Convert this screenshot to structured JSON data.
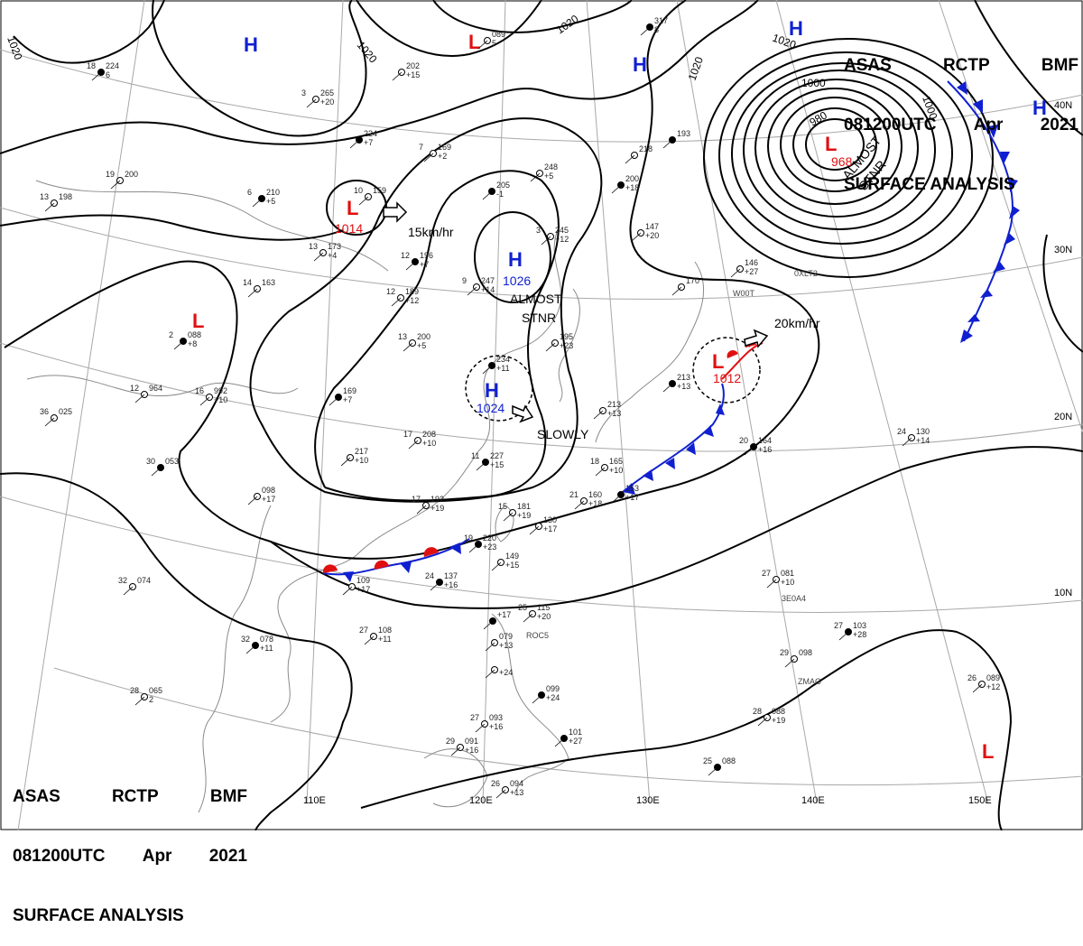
{
  "header": {
    "agency": "ASAS",
    "center": "RCTP",
    "office": "BMF",
    "time": "081200UTC",
    "month": "Apr",
    "year": "2021",
    "title": "SURFACE ANALYSIS"
  },
  "pressure_systems": [
    {
      "id": "h-1",
      "type": "H",
      "value": "",
      "color": "#1020d0"
    },
    {
      "id": "h-2",
      "type": "H",
      "value": "",
      "color": "#1020d0"
    },
    {
      "id": "h-3",
      "type": "H",
      "value": "",
      "color": "#1020d0"
    },
    {
      "id": "h-4",
      "type": "H",
      "value": "",
      "color": "#1020d0"
    },
    {
      "id": "h-1026",
      "type": "H",
      "value": "1026",
      "color": "#1020d0"
    },
    {
      "id": "h-1024",
      "type": "H",
      "value": "1024",
      "color": "#1020d0"
    },
    {
      "id": "l-1",
      "type": "L",
      "value": "",
      "color": "#e01010"
    },
    {
      "id": "l-1014",
      "type": "L",
      "value": "1014",
      "color": "#e01010"
    },
    {
      "id": "l-2",
      "type": "L",
      "value": "",
      "color": "#e01010"
    },
    {
      "id": "l-968",
      "type": "L",
      "value": "968",
      "color": "#e01010"
    },
    {
      "id": "l-1012",
      "type": "L",
      "value": "1012",
      "color": "#e01010"
    },
    {
      "id": "l-3",
      "type": "L",
      "value": "",
      "color": "#e01010"
    }
  ],
  "annotations": {
    "move_15": "15km/hr",
    "move_20": "20km/hr",
    "almost_stnr_a": "ALMOST",
    "almost_stnr_b": "STNR",
    "almost_stnr_c": "ALMOST",
    "almost_stnr_d": "STNR",
    "slowly": "SLOWLY"
  },
  "isobar_labels": [
    "1020",
    "1020",
    "1020",
    "1020",
    "1020",
    "1000",
    "1000",
    "980"
  ],
  "lat_labels": [
    "40N",
    "30N",
    "20N",
    "10N"
  ],
  "lon_labels": [
    "110E",
    "120E",
    "130E",
    "140E",
    "150E"
  ],
  "stations": [
    {
      "id": "st-01",
      "t": "18",
      "p": "224",
      "dp": "6"
    },
    {
      "id": "st-02",
      "t": "3",
      "p": "265",
      "dp": "+20"
    },
    {
      "id": "st-03",
      "t": "",
      "p": "202",
      "dp": "+15"
    },
    {
      "id": "st-04",
      "t": "",
      "p": "224",
      "dp": "+7"
    },
    {
      "id": "st-05",
      "t": "7",
      "p": "169",
      "dp": "+2"
    },
    {
      "id": "st-06",
      "t": "",
      "p": "089",
      "dp": "5"
    },
    {
      "id": "st-07",
      "t": "",
      "p": "317",
      "dp": "8"
    },
    {
      "id": "st-08",
      "t": "19",
      "p": "200",
      "dp": ""
    },
    {
      "id": "st-09",
      "t": "13",
      "p": "198",
      "dp": ""
    },
    {
      "id": "st-10",
      "t": "6",
      "p": "210",
      "dp": "+5"
    },
    {
      "id": "st-11",
      "t": "10",
      "p": "159",
      "dp": ""
    },
    {
      "id": "st-12",
      "t": "13",
      "p": "173",
      "dp": "+4"
    },
    {
      "id": "st-13",
      "t": "12",
      "p": "196",
      "dp": "+7"
    },
    {
      "id": "st-14",
      "t": "12",
      "p": "189",
      "dp": "+12"
    },
    {
      "id": "st-15",
      "t": "14",
      "p": "163",
      "dp": ""
    },
    {
      "id": "st-16",
      "t": "2",
      "p": "088",
      "dp": "+8"
    },
    {
      "id": "st-17",
      "t": "12",
      "p": "964",
      "dp": ""
    },
    {
      "id": "st-18",
      "t": "16",
      "p": "992",
      "dp": "+10"
    },
    {
      "id": "st-19",
      "t": "",
      "p": "169",
      "dp": "+7"
    },
    {
      "id": "st-20",
      "t": "13",
      "p": "200",
      "dp": "+5"
    },
    {
      "id": "st-21",
      "t": "36",
      "p": "025",
      "dp": ""
    },
    {
      "id": "st-22",
      "t": "30",
      "p": "053",
      "dp": ""
    },
    {
      "id": "st-23",
      "t": "",
      "p": "217",
      "dp": "+10"
    },
    {
      "id": "st-24",
      "t": "17",
      "p": "208",
      "dp": "+10"
    },
    {
      "id": "st-25",
      "t": "11",
      "p": "227",
      "dp": "+15"
    },
    {
      "id": "st-26",
      "t": "",
      "p": "098",
      "dp": "+17"
    },
    {
      "id": "st-27",
      "t": "17",
      "p": "192",
      "dp": "+19"
    },
    {
      "id": "st-28",
      "t": "",
      "p": "205",
      "dp": "-1"
    },
    {
      "id": "st-29",
      "t": "3",
      "p": "245",
      "dp": "+12"
    },
    {
      "id": "st-30",
      "t": "9",
      "p": "247",
      "dp": "+14"
    },
    {
      "id": "st-31",
      "t": "",
      "p": "234",
      "dp": "+11"
    },
    {
      "id": "st-32",
      "t": "",
      "p": "195",
      "dp": "+23"
    },
    {
      "id": "st-33",
      "t": "",
      "p": "248",
      "dp": "+5"
    },
    {
      "id": "st-34",
      "t": "",
      "p": "200",
      "dp": "+18"
    },
    {
      "id": "st-35",
      "t": "",
      "p": "218",
      "dp": ""
    },
    {
      "id": "st-36",
      "t": "",
      "p": "147",
      "dp": "+20"
    },
    {
      "id": "st-37",
      "t": "",
      "p": "193",
      "dp": ""
    },
    {
      "id": "st-38",
      "t": "",
      "p": "146",
      "dp": "+27"
    },
    {
      "id": "st-39",
      "t": "",
      "p": "170",
      "dp": ""
    },
    {
      "id": "st-40",
      "t": "",
      "p": "213",
      "dp": "+13"
    },
    {
      "id": "st-41",
      "t": "",
      "p": "213",
      "dp": "+13"
    },
    {
      "id": "st-42",
      "t": "18",
      "p": "165",
      "dp": "+10"
    },
    {
      "id": "st-43",
      "t": "20",
      "p": "164",
      "dp": "+16"
    },
    {
      "id": "st-44",
      "t": "24",
      "p": "130",
      "dp": "+14"
    },
    {
      "id": "st-45",
      "t": "21",
      "p": "160",
      "dp": "+18"
    },
    {
      "id": "st-46",
      "t": "",
      "p": "153",
      "dp": "+17"
    },
    {
      "id": "st-47",
      "t": "15",
      "p": "181",
      "dp": "+19"
    },
    {
      "id": "st-48",
      "t": "",
      "p": "130",
      "dp": "+17"
    },
    {
      "id": "st-49",
      "t": "19",
      "p": "220",
      "dp": "+23"
    },
    {
      "id": "st-50",
      "t": "",
      "p": "149",
      "dp": "+15"
    },
    {
      "id": "st-51",
      "t": "",
      "p": "109",
      "dp": "+17"
    },
    {
      "id": "st-52",
      "t": "24",
      "p": "137",
      "dp": "+16"
    },
    {
      "id": "st-53",
      "t": "32",
      "p": "074",
      "dp": ""
    },
    {
      "id": "st-54",
      "t": "27",
      "p": "108",
      "dp": "+11"
    },
    {
      "id": "st-55",
      "t": "32",
      "p": "078",
      "dp": "+11"
    },
    {
      "id": "st-56",
      "t": "28",
      "p": "065",
      "dp": "2"
    },
    {
      "id": "st-57",
      "t": "25",
      "p": "115",
      "dp": "+20"
    },
    {
      "id": "st-58",
      "t": "",
      "p": "+17",
      "dp": ""
    },
    {
      "id": "st-59",
      "t": "",
      "p": "079",
      "dp": "+13"
    },
    {
      "id": "st-60",
      "t": "",
      "p": "",
      "dp": "+24"
    },
    {
      "id": "st-61",
      "t": "",
      "p": "099",
      "dp": "+24"
    },
    {
      "id": "st-62",
      "t": "27",
      "p": "093",
      "dp": "+16"
    },
    {
      "id": "st-63",
      "t": "29",
      "p": "091",
      "dp": "+16"
    },
    {
      "id": "st-64",
      "t": "",
      "p": "101",
      "dp": "+27"
    },
    {
      "id": "st-65",
      "t": "26",
      "p": "094",
      "dp": "+13"
    },
    {
      "id": "st-66",
      "t": "27",
      "p": "081",
      "dp": "+10"
    },
    {
      "id": "st-67",
      "t": "27",
      "p": "103",
      "dp": "+28"
    },
    {
      "id": "st-68",
      "t": "29",
      "p": "098",
      "dp": ""
    },
    {
      "id": "st-69",
      "t": "28",
      "p": "088",
      "dp": "+19"
    },
    {
      "id": "st-70",
      "t": "25",
      "p": "088",
      "dp": ""
    },
    {
      "id": "st-71",
      "t": "26",
      "p": "089",
      "dp": "+12"
    }
  ],
  "station_codes": [
    "ROC5",
    "3E0A4",
    "ZMAG",
    "0XLT2",
    "W00T"
  ],
  "colors": {
    "high": "#1020d0",
    "low": "#e01010",
    "cold_front": "#1020d0",
    "warm_front": "#e01010",
    "isobar": "#000000",
    "coast": "#888888",
    "grid": "#999999"
  }
}
